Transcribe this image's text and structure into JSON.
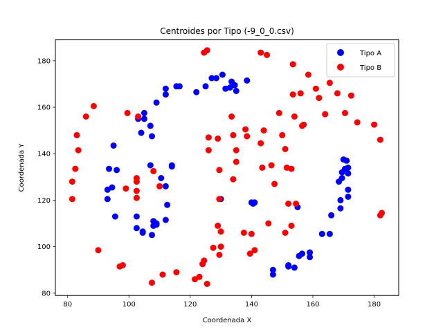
{
  "chart_data": {
    "type": "scatter",
    "title": "Centroides por Tipo (-9_0_0.csv)",
    "xlabel": "Coordenada X",
    "ylabel": "Coordenada Y",
    "xlim": [
      76,
      188
    ],
    "ylim": [
      79,
      189
    ],
    "xticks": [
      80,
      100,
      120,
      140,
      160,
      180
    ],
    "yticks": [
      80,
      100,
      120,
      140,
      160,
      180
    ],
    "grid": false,
    "legend_position": "top-right",
    "series": [
      {
        "name": "Tipo A",
        "color": "#0000ff",
        "points": [
          [
            105.0,
            157.5
          ],
          [
            105.0,
            155.0
          ],
          [
            103.0,
            155.0
          ],
          [
            107.0,
            152.0
          ],
          [
            104.0,
            149.0
          ],
          [
            107.5,
            147.5
          ],
          [
            109.0,
            162.0
          ],
          [
            112.0,
            165.5
          ],
          [
            112.0,
            168.0
          ],
          [
            115.5,
            169.0
          ],
          [
            116.5,
            169.0
          ],
          [
            122.0,
            166.5
          ],
          [
            125.0,
            169.0
          ],
          [
            127.0,
            172.5
          ],
          [
            128.5,
            172.5
          ],
          [
            130.5,
            174.0
          ],
          [
            131.5,
            168.0
          ],
          [
            133.0,
            168.5
          ],
          [
            133.5,
            171.0
          ],
          [
            134.5,
            169.5
          ],
          [
            135.0,
            167.0
          ],
          [
            138.5,
            171.5
          ],
          [
            95.0,
            143.5
          ],
          [
            93.5,
            133.5
          ],
          [
            96.0,
            133.0
          ],
          [
            93.0,
            124.5
          ],
          [
            94.5,
            125.5
          ],
          [
            93.0,
            120.5
          ],
          [
            95.5,
            113.0
          ],
          [
            107.0,
            135.0
          ],
          [
            110.5,
            129.5
          ],
          [
            112.0,
            126.0
          ],
          [
            114.0,
            135.0
          ],
          [
            114.0,
            134.5
          ],
          [
            112.5,
            118.0
          ],
          [
            102.5,
            113.0
          ],
          [
            102.5,
            108.0
          ],
          [
            104.5,
            106.5
          ],
          [
            104.5,
            106.0
          ],
          [
            107.5,
            105.0
          ],
          [
            108.0,
            109.0
          ],
          [
            108.0,
            111.0
          ],
          [
            109.0,
            109.5
          ],
          [
            109.0,
            110.0
          ],
          [
            112.0,
            111.5
          ],
          [
            130.0,
            120.5
          ],
          [
            140.0,
            119.0
          ],
          [
            140.5,
            118.5
          ],
          [
            141.0,
            119.0
          ],
          [
            147.0,
            90.0
          ],
          [
            147.0,
            88.0
          ],
          [
            152.0,
            91.5
          ],
          [
            152.0,
            92.0
          ],
          [
            154.0,
            91.0
          ],
          [
            155.0,
            117.0
          ],
          [
            155.5,
            96.0
          ],
          [
            156.5,
            97.0
          ],
          [
            159.0,
            97.5
          ],
          [
            159.0,
            95.5
          ],
          [
            163.0,
            105.5
          ],
          [
            165.5,
            105.5
          ],
          [
            166.0,
            113.5
          ],
          [
            169.0,
            120.0
          ],
          [
            169.0,
            116.5
          ],
          [
            168.5,
            128.0
          ],
          [
            169.5,
            129.5
          ],
          [
            169.5,
            132.0
          ],
          [
            170.0,
            137.5
          ],
          [
            171.0,
            137.0
          ],
          [
            170.5,
            133.5
          ],
          [
            171.5,
            134.0
          ],
          [
            171.5,
            131.5
          ],
          [
            171.5,
            124.5
          ],
          [
            171.5,
            121.5
          ]
        ]
      },
      {
        "name": "Tipo B",
        "color": "#ff0000",
        "points": [
          [
            81.5,
            120.5
          ],
          [
            81.5,
            128.0
          ],
          [
            82.5,
            133.5
          ],
          [
            83.0,
            148.0
          ],
          [
            83.5,
            141.5
          ],
          [
            86.0,
            156.0
          ],
          [
            88.5,
            160.5
          ],
          [
            90.0,
            98.5
          ],
          [
            97.0,
            91.5
          ],
          [
            98.0,
            92.0
          ],
          [
            99.0,
            125.0
          ],
          [
            99.5,
            157.5
          ],
          [
            102.5,
            129.5
          ],
          [
            102.5,
            128.0
          ],
          [
            102.5,
            124.0
          ],
          [
            102.5,
            121.0
          ],
          [
            103.0,
            156.0
          ],
          [
            107.5,
            84.5
          ],
          [
            108.0,
            132.5
          ],
          [
            110.0,
            126.0
          ],
          [
            111.0,
            88.0
          ],
          [
            115.5,
            89.0
          ],
          [
            121.5,
            86.0
          ],
          [
            123.0,
            87.0
          ],
          [
            124.0,
            92.5
          ],
          [
            124.5,
            94.0
          ],
          [
            124.5,
            183.5
          ],
          [
            125.5,
            184.5
          ],
          [
            125.5,
            84.0
          ],
          [
            126.0,
            147.0
          ],
          [
            126.0,
            141.5
          ],
          [
            127.5,
            99.5
          ],
          [
            129.0,
            146.5
          ],
          [
            129.0,
            109.0
          ],
          [
            129.5,
            133.0
          ],
          [
            129.5,
            120.5
          ],
          [
            129.5,
            96.5
          ],
          [
            130.0,
            100.0
          ],
          [
            130.0,
            106.5
          ],
          [
            133.5,
            156.0
          ],
          [
            134.0,
            148.0
          ],
          [
            134.0,
            129.0
          ],
          [
            135.0,
            141.5
          ],
          [
            135.0,
            136.5
          ],
          [
            137.5,
            106.0
          ],
          [
            138.0,
            150.5
          ],
          [
            138.5,
            147.5
          ],
          [
            139.5,
            97.0
          ],
          [
            140.0,
            105.5
          ],
          [
            141.0,
            98.5
          ],
          [
            143.0,
            183.5
          ],
          [
            143.0,
            144.5
          ],
          [
            143.5,
            134.0
          ],
          [
            144.0,
            150.0
          ],
          [
            145.0,
            182.5
          ],
          [
            145.5,
            110.0
          ],
          [
            146.5,
            135.0
          ],
          [
            147.5,
            127.0
          ],
          [
            149.0,
            157.5
          ],
          [
            150.0,
            148.0
          ],
          [
            151.0,
            142.0
          ],
          [
            151.0,
            106.0
          ],
          [
            151.5,
            134.0
          ],
          [
            152.0,
            118.5
          ],
          [
            153.0,
            109.0
          ],
          [
            153.0,
            133.5
          ],
          [
            153.5,
            178.5
          ],
          [
            153.5,
            165.5
          ],
          [
            154.0,
            156.0
          ],
          [
            154.5,
            118.5
          ],
          [
            156.0,
            166.0
          ],
          [
            156.5,
            152.0
          ],
          [
            157.0,
            152.5
          ],
          [
            158.5,
            174.0
          ],
          [
            161.0,
            168.0
          ],
          [
            162.0,
            164.0
          ],
          [
            164.0,
            157.0
          ],
          [
            165.5,
            170.5
          ],
          [
            168.0,
            166.0
          ],
          [
            170.5,
            157.5
          ],
          [
            172.5,
            165.0
          ],
          [
            174.5,
            153.5
          ],
          [
            180.0,
            152.5
          ],
          [
            182.0,
            146.0
          ],
          [
            182.0,
            113.5
          ],
          [
            182.5,
            114.5
          ]
        ]
      }
    ]
  }
}
